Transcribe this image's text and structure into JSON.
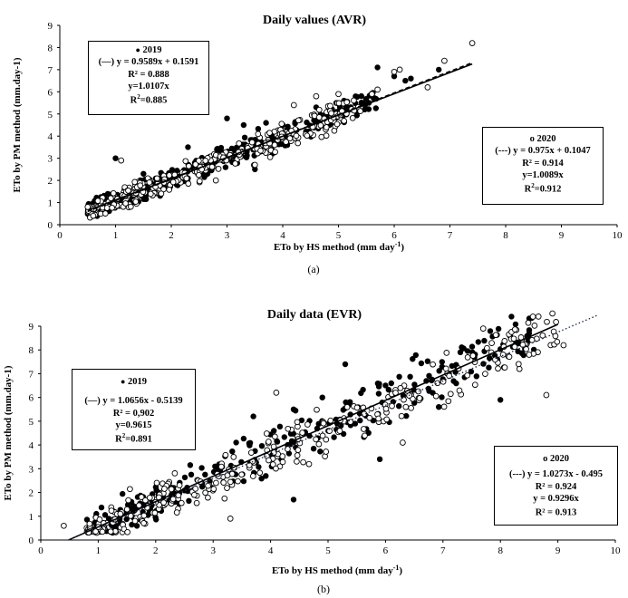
{
  "charts": [
    {
      "id": "a",
      "type": "scatter",
      "title": "Daily values (AVR)",
      "xlabel_main": "ETo by HS method (mm day",
      "xlabel_sup": "-1",
      "xlabel_close": ")",
      "ylabel": "ETo by PM method (mm.day-1)",
      "caption": "(a)",
      "xlim": [
        0,
        10
      ],
      "ylim": [
        0,
        9
      ],
      "xticks": [
        "0",
        "1",
        "2",
        "3",
        "4",
        "5",
        "6",
        "7",
        "8",
        "9",
        "10"
      ],
      "yticks": [
        "0",
        "1",
        "2",
        "3",
        "4",
        "5",
        "6",
        "7",
        "8",
        "9"
      ],
      "series": [
        {
          "name": "2019",
          "marker": "filled",
          "slope": 0.9589,
          "intercept": 0.1591,
          "line": "solid",
          "x_range": [
            0.5,
            7.4
          ],
          "cloud": {
            "x_min": 0.5,
            "x_max": 5.7,
            "spread": 0.33,
            "n": 330,
            "seed": 11
          },
          "extra_points": [
            [
              5.7,
              7.1
            ],
            [
              6.8,
              7.0
            ],
            [
              6.2,
              6.5
            ],
            [
              6.0,
              6.7
            ],
            [
              6.3,
              6.6
            ],
            [
              5.1,
              5.6
            ],
            [
              4.6,
              5.3
            ],
            [
              3.7,
              4.6
            ],
            [
              3.0,
              4.8
            ],
            [
              3.3,
              4.5
            ],
            [
              2.3,
              3.5
            ],
            [
              1.0,
              3.0
            ],
            [
              1.5,
              2.3
            ],
            [
              4.0,
              4.5
            ],
            [
              3.5,
              2.5
            ],
            [
              1.8,
              1.3
            ]
          ]
        },
        {
          "name": "2020",
          "marker": "open",
          "slope": 0.975,
          "intercept": 0.1047,
          "line": "dashed",
          "x_range": [
            0.5,
            7.4
          ],
          "cloud": {
            "x_min": 0.5,
            "x_max": 5.4,
            "spread": 0.33,
            "n": 330,
            "seed": 29
          },
          "extra_points": [
            [
              7.4,
              8.2
            ],
            [
              6.9,
              7.4
            ],
            [
              6.6,
              6.2
            ],
            [
              6.1,
              7.0
            ],
            [
              6.0,
              6.9
            ],
            [
              5.7,
              6.1
            ],
            [
              5.6,
              5.9
            ],
            [
              5.0,
              5.9
            ],
            [
              4.6,
              5.8
            ],
            [
              4.2,
              5.4
            ],
            [
              0.6,
              0.4
            ],
            [
              0.5,
              0.8
            ],
            [
              1.1,
              2.9
            ],
            [
              2.8,
              2.0
            ],
            [
              3.5,
              2.7
            ]
          ]
        }
      ],
      "legend_2019": {
        "header": "2019",
        "eq": "(—) y = 0.9589x + 0.1591",
        "r2": "R² = 0.888",
        "y_thru": "y=1.0107x",
        "r2b_pre": "R",
        "r2b_sup": "2",
        "r2b_post": "=0.885"
      },
      "legend_2020": {
        "header": "o 2020",
        "eq": "(---) y = 0.975x + 0.1047",
        "r2": "R² = 0.914",
        "y_thru": "y=1.0089x",
        "r2b_pre": "R",
        "r2b_sup": "2",
        "r2b_post": "=0.912"
      }
    },
    {
      "id": "b",
      "type": "scatter",
      "title": "Daily data (EVR)",
      "xlabel_main": "ETo by HS method (mm day",
      "xlabel_sup": "-1",
      "xlabel_close": ")",
      "ylabel": "ETo by PM method (mm.day-1)",
      "caption": "(b)",
      "xlim": [
        0,
        10
      ],
      "ylim": [
        0,
        9
      ],
      "xticks": [
        "0",
        "1",
        "2",
        "3",
        "4",
        "5",
        "6",
        "7",
        "8",
        "9",
        "10"
      ],
      "yticks": [
        "0",
        "1",
        "2",
        "3",
        "4",
        "5",
        "6",
        "7",
        "8",
        "9"
      ],
      "series": [
        {
          "name": "2019",
          "marker": "filled",
          "slope": 1.0656,
          "intercept": -0.5139,
          "line": "solid",
          "x_range": [
            0.48,
            9.0
          ],
          "cloud": {
            "x_min": 0.8,
            "x_max": 8.6,
            "spread": 0.62,
            "n": 300,
            "seed": 41
          },
          "extra_points": [
            [
              4.4,
              1.7
            ],
            [
              4.4,
              5.5
            ],
            [
              5.3,
              7.4
            ],
            [
              8.5,
              8.7
            ],
            [
              8.0,
              5.9
            ],
            [
              5.9,
              3.4
            ],
            [
              3.7,
              5.2
            ],
            [
              4.9,
              6.0
            ]
          ]
        },
        {
          "name": "2020",
          "marker": "open",
          "slope": 1.0273,
          "intercept": -0.495,
          "line": "dotted",
          "x_range": [
            0.48,
            9.7
          ],
          "cloud": {
            "x_min": 0.8,
            "x_max": 9.0,
            "spread": 0.62,
            "n": 300,
            "seed": 67
          },
          "extra_points": [
            [
              0.4,
              0.6
            ],
            [
              9.1,
              8.2
            ],
            [
              8.8,
              6.1
            ],
            [
              7.7,
              8.9
            ],
            [
              8.5,
              7.8
            ],
            [
              3.3,
              0.9
            ],
            [
              6.3,
              4.1
            ],
            [
              4.1,
              6.2
            ]
          ]
        }
      ],
      "legend_2019": {
        "header": "2019",
        "eq": "(—) y = 1.0656x - 0.5139",
        "r2": "R² = 0,902",
        "y_thru": "y=0.9615",
        "r2b_pre": "R",
        "r2b_sup": "2",
        "r2b_post": "=0.891"
      },
      "legend_2020": {
        "header": "o 2020",
        "eq": "(---) y = 1.0273x - 0.495",
        "r2": "R² = 0.924",
        "y_thru": "y = 0.9296x",
        "r2b_pre": "R² = 0.913",
        "r2b_sup": "",
        "r2b_post": ""
      }
    }
  ],
  "chart_data": [
    {
      "type": "scatter",
      "title": "Daily values (AVR)",
      "xlabel": "ETo by HS method (mm day-1)",
      "ylabel": "ETo by PM method (mm.day-1)",
      "xlim": [
        0,
        10
      ],
      "ylim": [
        0,
        9
      ],
      "series": [
        {
          "name": "2019",
          "fit": "y = 0.9589x + 0.1591",
          "r2": 0.888
        },
        {
          "name": "2020",
          "fit": "y = 0.975x + 0.1047",
          "r2": 0.914
        }
      ]
    },
    {
      "type": "scatter",
      "title": "Daily data (EVR)",
      "xlabel": "ETo by HS method (mm day-1)",
      "ylabel": "ETo by PM method (mm.day-1)",
      "xlim": [
        0,
        10
      ],
      "ylim": [
        0,
        9
      ],
      "series": [
        {
          "name": "2019",
          "fit": "y = 1.0656x - 0.5139",
          "r2": 0.902
        },
        {
          "name": "2020",
          "fit": "y = 1.0273x - 0.495",
          "r2": 0.924
        }
      ]
    }
  ]
}
